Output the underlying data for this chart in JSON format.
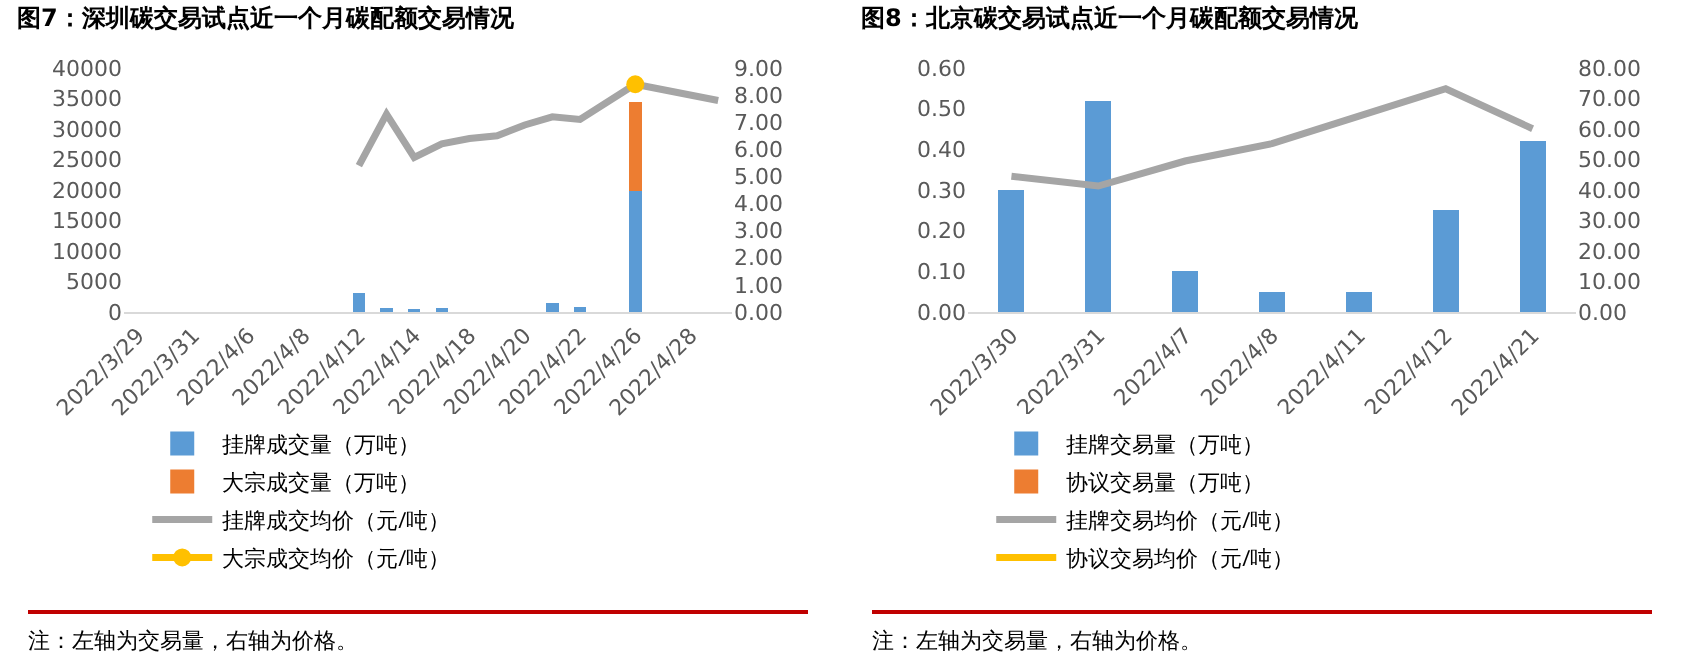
{
  "chart_data": [
    {
      "type": "bar",
      "title": "图7：深圳碳交易试点近一个月碳配额交易情况",
      "stacked": true,
      "categories": [
        "2022/3/29",
        null,
        "2022/3/31",
        null,
        "2022/4/6",
        null,
        "2022/4/8",
        null,
        "2022/4/12",
        null,
        "2022/4/14",
        null,
        "2022/4/18",
        null,
        "2022/4/20",
        null,
        "2022/4/22",
        null,
        "2022/4/26",
        null,
        "2022/4/28",
        null
      ],
      "series": [
        {
          "name": "挂牌成交量（万吨）",
          "color": "#5b9bd5",
          "values": [
            null,
            null,
            null,
            null,
            null,
            null,
            null,
            null,
            3100,
            600,
            500,
            600,
            null,
            null,
            null,
            1500,
            900,
            null,
            19900,
            null,
            null,
            null
          ]
        },
        {
          "name": "大宗成交量（万吨）",
          "color": "#ed7d31",
          "values": [
            null,
            null,
            null,
            null,
            null,
            null,
            null,
            null,
            null,
            null,
            null,
            null,
            null,
            null,
            null,
            null,
            null,
            null,
            14500,
            null,
            null,
            null
          ]
        },
        {
          "name": "挂牌成交均价（元/吨）",
          "type": "line",
          "axis": "y2",
          "color": "#a5a5a5",
          "values": [
            null,
            null,
            null,
            null,
            null,
            null,
            null,
            null,
            5.4,
            7.3,
            5.7,
            6.2,
            6.4,
            6.5,
            6.9,
            7.2,
            7.1,
            null,
            8.4,
            null,
            null,
            7.8
          ]
        },
        {
          "name": "大宗成交均价（元/吨）",
          "type": "line",
          "axis": "y2",
          "color": "#ffc000",
          "marker": "circle",
          "values": [
            null,
            null,
            null,
            null,
            null,
            null,
            null,
            null,
            null,
            null,
            null,
            null,
            null,
            null,
            null,
            null,
            null,
            null,
            8.4,
            null,
            null,
            null
          ]
        }
      ],
      "ylim": [
        0,
        40000
      ],
      "yticks": [
        0,
        5000,
        10000,
        15000,
        20000,
        25000,
        30000,
        35000,
        40000
      ],
      "y2lim": [
        0,
        9
      ],
      "y2ticks": [
        {
          "value": 0,
          "label": "0.00"
        },
        {
          "value": 1,
          "label": "1.00"
        },
        {
          "value": 2,
          "label": "2.00"
        },
        {
          "value": 3,
          "label": "3.00"
        },
        {
          "value": 4,
          "label": "4.00"
        },
        {
          "value": 5,
          "label": "5.00"
        },
        {
          "value": 6,
          "label": "6.00"
        },
        {
          "value": 7,
          "label": "7.00"
        },
        {
          "value": 8,
          "label": "8.00"
        },
        {
          "value": 9,
          "label": "9.00"
        }
      ],
      "grid": false,
      "legend": "bottom",
      "marker": "none",
      "line_style": "solid",
      "annotations": [
        "注：左轴为交易量，右轴为价格。"
      ]
    },
    {
      "type": "bar",
      "title": "图8：北京碳交易试点近一个月碳配额交易情况",
      "stacked": true,
      "categories": [
        "2022/3/30",
        "2022/3/31",
        "2022/4/7",
        "2022/4/8",
        "2022/4/11",
        "2022/4/12",
        "2022/4/21"
      ],
      "series": [
        {
          "name": "挂牌交易量（万吨）",
          "color": "#5b9bd5",
          "values": [
            0.3,
            0.52,
            0.1,
            0.05,
            0.05,
            0.25,
            0.42
          ]
        },
        {
          "name": "协议交易量（万吨）",
          "color": "#ed7d31",
          "values": [
            null,
            null,
            null,
            null,
            null,
            null,
            null
          ]
        },
        {
          "name": "挂牌交易均价（元/吨）",
          "type": "line",
          "axis": "y2",
          "color": "#a5a5a5",
          "values": [
            44.5,
            41.3,
            49.5,
            55.2,
            64.2,
            73.2,
            60.1
          ]
        },
        {
          "name": "协议交易均价（元/吨）",
          "type": "line",
          "axis": "y2",
          "color": "#ffc000",
          "values": [
            null,
            null,
            null,
            null,
            null,
            null,
            null
          ]
        }
      ],
      "ylim": [
        0,
        0.6
      ],
      "yticks": [
        {
          "value": 0,
          "label": "0.00"
        },
        {
          "value": 0.1,
          "label": "0.10"
        },
        {
          "value": 0.2,
          "label": "0.20"
        },
        {
          "value": 0.3,
          "label": "0.30"
        },
        {
          "value": 0.4,
          "label": "0.40"
        },
        {
          "value": 0.5,
          "label": "0.50"
        },
        {
          "value": 0.6,
          "label": "0.60"
        }
      ],
      "y2lim": [
        0,
        80
      ],
      "y2ticks": [
        {
          "value": 0,
          "label": "0.00"
        },
        {
          "value": 10,
          "label": "10.00"
        },
        {
          "value": 20,
          "label": "20.00"
        },
        {
          "value": 30,
          "label": "30.00"
        },
        {
          "value": 40,
          "label": "40.00"
        },
        {
          "value": 50,
          "label": "50.00"
        },
        {
          "value": 60,
          "label": "60.00"
        },
        {
          "value": 70,
          "label": "70.00"
        },
        {
          "value": 80,
          "label": "80.00"
        }
      ],
      "grid": false,
      "legend": "bottom",
      "marker": "none",
      "line_style": "solid",
      "annotations": [
        "注：左轴为交易量，右轴为价格。"
      ]
    }
  ]
}
